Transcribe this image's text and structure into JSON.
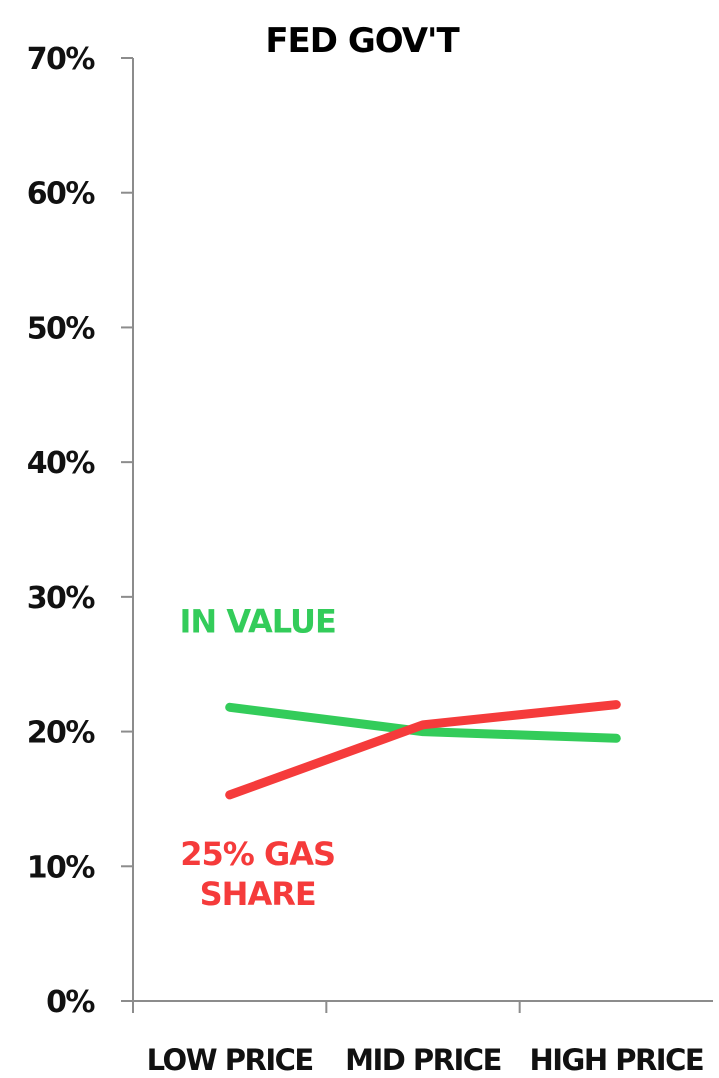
{
  "chart_data": {
    "type": "line",
    "title": "FED GOV'T",
    "categories": [
      "LOW PRICE",
      "MID PRICE",
      "HIGH PRICE"
    ],
    "ylim": [
      0,
      70
    ],
    "yticks": [
      0,
      10,
      20,
      30,
      40,
      50,
      60,
      70
    ],
    "ytick_labels": [
      "0%",
      "10%",
      "20%",
      "30%",
      "40%",
      "50%",
      "60%",
      "70%"
    ],
    "grid": false,
    "legend": "inline labels",
    "series": [
      {
        "name": "IN VALUE",
        "label_lines": [
          "IN VALUE"
        ],
        "color": "#33cc5a",
        "values": [
          21.8,
          20.0,
          19.5
        ]
      },
      {
        "name": "25% GAS SHARE",
        "label_lines": [
          "25% GAS",
          "SHARE"
        ],
        "color": "#f53b3b",
        "values": [
          15.3,
          20.5,
          22.0
        ]
      }
    ]
  }
}
